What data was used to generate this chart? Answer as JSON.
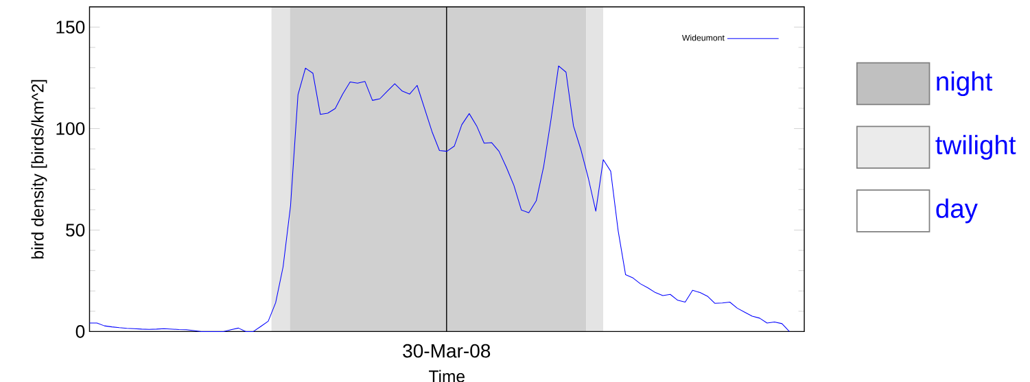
{
  "chart_data": {
    "type": "line",
    "xlabel": "Time",
    "ylabel": "bird density [birds/km^2]",
    "categories": [
      null,
      null,
      null,
      null,
      null,
      null,
      null,
      null,
      null,
      null,
      null,
      null,
      null,
      null,
      null,
      null,
      null,
      null,
      null,
      null,
      null,
      null,
      null,
      null,
      null,
      null,
      null,
      null,
      null,
      null,
      null,
      null,
      null,
      null,
      null,
      null,
      null,
      null,
      null,
      null,
      null,
      null,
      null,
      null,
      null,
      null,
      null,
      null,
      null,
      null,
      null,
      null,
      null,
      null,
      null,
      null,
      null,
      null,
      null,
      null,
      null,
      null,
      null,
      null,
      null,
      null,
      null,
      null,
      null,
      null,
      null,
      null,
      null,
      null,
      null,
      null,
      null,
      null,
      null,
      null,
      null,
      null,
      null,
      null,
      null,
      null,
      null,
      null,
      null,
      null,
      null,
      null,
      null,
      null,
      null
    ],
    "annotations": [
      "30-Mar-08",
      "night",
      "twilight",
      "day"
    ],
    "ylim": [
      0,
      160
    ],
    "yticks": [
      0,
      50,
      100,
      150
    ],
    "legend": "top right",
    "line_style": "solid",
    "series": [
      {
        "name": "Wideumont",
        "color": "#0000ff",
        "values": [
          4.2,
          4.2,
          2.8,
          2.3,
          1.9,
          1.6,
          1.4,
          1.2,
          1.1,
          1.2,
          1.4,
          1.2,
          1.0,
          0.9,
          0.5,
          0,
          0,
          0,
          0,
          0.9,
          1.7,
          0,
          0,
          2.5,
          5.1,
          14.2,
          31.9,
          62,
          116.7,
          129.8,
          127.3,
          107,
          107.6,
          109.9,
          117,
          123,
          122.4,
          123.2,
          113.9,
          114.7,
          118.5,
          122.1,
          118.5,
          117,
          121.3,
          109.9,
          98.5,
          89.2,
          88.8,
          91.4,
          101.9,
          107.4,
          101.3,
          92.8,
          93.1,
          88.8,
          80.8,
          72,
          59.9,
          58.5,
          64.4,
          81.4,
          104.9,
          130.9,
          127.8,
          101.3,
          89.6,
          75.5,
          59.3,
          84.7,
          79,
          49.7,
          28,
          26.4,
          23.5,
          21.5,
          19.2,
          17.7,
          18.3,
          15.4,
          14.5,
          20.3,
          19.2,
          17.4,
          13.9,
          14.1,
          14.5,
          11.5,
          9.5,
          7.6,
          6.6,
          4.2,
          4.7,
          3.9,
          0
        ]
      }
    ],
    "marker": "none"
  }
}
